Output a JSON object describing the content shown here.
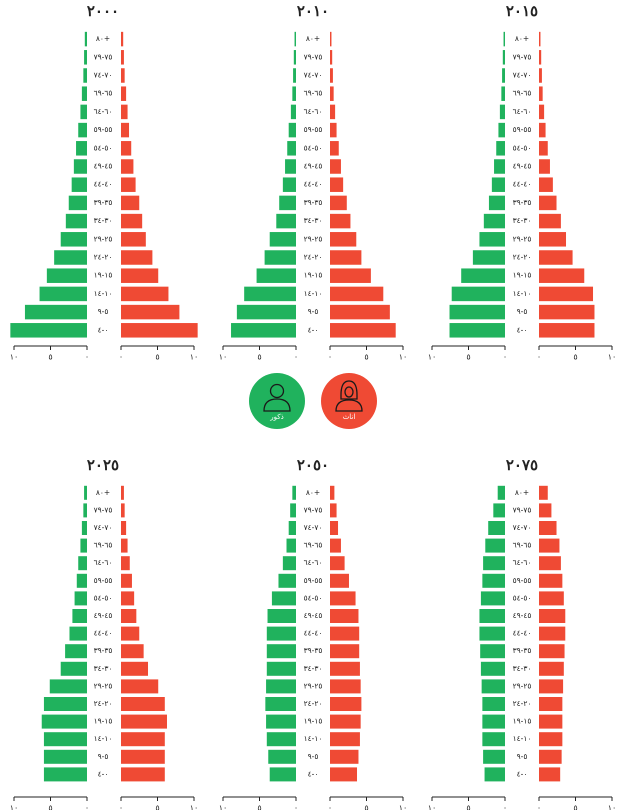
{
  "chart_data": [
    {
      "type": "bar",
      "title": "٢٠٠٠",
      "categories": [
        "٠-٤",
        "٥-٩",
        "١٠-١٤",
        "١٥-١٩",
        "٢٠-٢٤",
        "٢٥-٢٩",
        "٣٠-٣٤",
        "٣٥-٣٩",
        "٤٠-٤٤",
        "٤٥-٤٩",
        "٥٠-٥٤",
        "٥٥-٥٩",
        "٦٠-٦٤",
        "٦٥-٦٩",
        "٧٠-٧٤",
        "٧٥-٧٩",
        "٨٠+"
      ],
      "series": [
        {
          "name": "ذكور",
          "values": [
            10.5,
            8.5,
            6.5,
            5.5,
            4.5,
            3.6,
            2.9,
            2.5,
            2.1,
            1.8,
            1.5,
            1.2,
            0.9,
            0.7,
            0.5,
            0.4,
            0.3
          ]
        },
        {
          "name": "اناث",
          "values": [
            10.5,
            8.0,
            6.5,
            5.1,
            4.3,
            3.4,
            2.9,
            2.5,
            2.0,
            1.7,
            1.4,
            1.1,
            0.9,
            0.7,
            0.5,
            0.4,
            0.3
          ]
        }
      ],
      "tick_labels": [
        "١٠",
        "٥",
        "٠"
      ],
      "xlim": [
        0,
        10
      ]
    },
    {
      "type": "bar",
      "title": "٢٠١٠",
      "categories": [
        "٠-٤",
        "٥-٩",
        "١٠-١٤",
        "١٥-١٩",
        "٢٠-٢٤",
        "٢٥-٢٩",
        "٣٠-٣٤",
        "٣٥-٣٩",
        "٤٠-٤٤",
        "٤٥-٤٩",
        "٥٠-٥٤",
        "٥٥-٥٩",
        "٦٠-٦٤",
        "٦٥-٦٩",
        "٧٠-٧٤",
        "٧٥-٧٩",
        "٨٠+"
      ],
      "series": [
        {
          "name": "ذكور",
          "values": [
            8.9,
            8.1,
            7.1,
            5.4,
            4.3,
            3.6,
            2.7,
            2.3,
            1.8,
            1.5,
            1.2,
            1.0,
            0.7,
            0.5,
            0.4,
            0.3,
            0.2
          ]
        },
        {
          "name": "اناث",
          "values": [
            9.0,
            8.2,
            7.3,
            5.6,
            4.3,
            3.6,
            2.8,
            2.3,
            1.8,
            1.5,
            1.2,
            0.9,
            0.7,
            0.5,
            0.4,
            0.3,
            0.2
          ]
        }
      ],
      "tick_labels": [
        "١٠",
        "٥",
        "٠"
      ],
      "xlim": [
        0,
        10
      ]
    },
    {
      "type": "bar",
      "title": "٢٠١٥",
      "categories": [
        "٠-٤",
        "٥-٩",
        "١٠-١٤",
        "١٥-١٩",
        "٢٠-٢٤",
        "٢٥-٢٩",
        "٣٠-٣٤",
        "٣٥-٣٩",
        "٤٠-٤٤",
        "٤٥-٤٩",
        "٥٠-٥٤",
        "٥٥-٥٩",
        "٦٠-٦٤",
        "٦٥-٦٩",
        "٧٠-٧٤",
        "٧٥-٧٩",
        "٨٠+"
      ],
      "series": [
        {
          "name": "ذكور",
          "values": [
            7.6,
            7.6,
            7.3,
            6.0,
            4.4,
            3.5,
            2.9,
            2.2,
            1.8,
            1.5,
            1.2,
            0.9,
            0.7,
            0.5,
            0.4,
            0.3,
            0.2
          ]
        },
        {
          "name": "اناث",
          "values": [
            7.6,
            7.6,
            7.4,
            6.2,
            4.6,
            3.7,
            3.0,
            2.4,
            1.9,
            1.5,
            1.2,
            0.9,
            0.7,
            0.5,
            0.4,
            0.3,
            0.2
          ]
        }
      ],
      "tick_labels": [
        "١٠",
        "٥",
        "٠"
      ],
      "xlim": [
        0,
        10
      ]
    },
    {
      "type": "bar",
      "title": "٢٠٢٥",
      "categories": [
        "٠-٤",
        "٥-٩",
        "١٠-١٤",
        "١٥-١٩",
        "٢٠-٢٤",
        "٢٥-٢٩",
        "٣٠-٣٤",
        "٣٥-٣٩",
        "٤٠-٤٤",
        "٤٥-٤٩",
        "٥٠-٥٤",
        "٥٥-٥٩",
        "٦٠-٦٤",
        "٦٥-٦٩",
        "٧٠-٧٤",
        "٧٥-٧٩",
        "٨٠+"
      ],
      "series": [
        {
          "name": "ذكور",
          "values": [
            5.9,
            5.9,
            5.9,
            6.2,
            5.9,
            5.1,
            3.6,
            3.0,
            2.4,
            2.0,
            1.7,
            1.4,
            1.2,
            0.9,
            0.7,
            0.5,
            0.4
          ]
        },
        {
          "name": "اناث",
          "values": [
            6.0,
            6.0,
            6.0,
            6.3,
            6.0,
            5.1,
            3.7,
            3.1,
            2.5,
            2.1,
            1.8,
            1.5,
            1.2,
            0.9,
            0.7,
            0.5,
            0.4
          ]
        }
      ],
      "tick_labels": [
        "١٠",
        "٥",
        "٠"
      ],
      "xlim": [
        0,
        10
      ]
    },
    {
      "type": "bar",
      "title": "٢٠٥٠",
      "categories": [
        "٠-٤",
        "٥-٩",
        "١٠-١٤",
        "١٥-١٩",
        "٢٠-٢٤",
        "٢٥-٢٩",
        "٣٠-٣٤",
        "٣٥-٣٩",
        "٤٠-٤٤",
        "٤٥-٤٩",
        "٥٠-٥٤",
        "٥٥-٥٩",
        "٦٠-٦٤",
        "٦٥-٦٩",
        "٧٠-٧٤",
        "٧٥-٧٩",
        "٨٠+"
      ],
      "series": [
        {
          "name": "ذكور",
          "values": [
            3.6,
            3.8,
            4.0,
            4.1,
            4.2,
            4.1,
            4.0,
            4.0,
            4.0,
            3.9,
            3.3,
            2.4,
            1.8,
            1.3,
            1.0,
            0.8,
            0.5
          ]
        },
        {
          "name": "اناث",
          "values": [
            3.7,
            3.9,
            4.1,
            4.2,
            4.3,
            4.2,
            4.1,
            4.0,
            4.0,
            3.9,
            3.5,
            2.6,
            2.0,
            1.5,
            1.1,
            0.9,
            0.6
          ]
        }
      ],
      "tick_labels": [
        "١٠",
        "٥",
        "٠"
      ],
      "xlim": [
        0,
        10
      ]
    },
    {
      "type": "bar",
      "title": "٢٠٧٥",
      "categories": [
        "٠-٤",
        "٥-٩",
        "١٠-١٤",
        "١٥-١٩",
        "٢٠-٢٤",
        "٢٥-٢٩",
        "٣٠-٣٤",
        "٣٥-٣٩",
        "٤٠-٤٤",
        "٤٥-٤٩",
        "٥٠-٥٤",
        "٥٥-٥٩",
        "٦٠-٦٤",
        "٦٥-٦٩",
        "٧٠-٧٤",
        "٧٥-٧٩",
        "٨٠+"
      ],
      "series": [
        {
          "name": "ذكور",
          "values": [
            2.8,
            3.0,
            3.1,
            3.1,
            3.1,
            3.2,
            3.3,
            3.4,
            3.5,
            3.5,
            3.3,
            3.1,
            3.0,
            2.7,
            2.3,
            1.6,
            1.0
          ]
        },
        {
          "name": "اناث",
          "values": [
            2.9,
            3.1,
            3.2,
            3.2,
            3.2,
            3.3,
            3.4,
            3.5,
            3.6,
            3.6,
            3.4,
            3.2,
            3.0,
            2.8,
            2.4,
            1.7,
            1.2
          ]
        }
      ],
      "tick_labels": [
        "١٠",
        "٥",
        "٠"
      ],
      "xlim": [
        0,
        10
      ]
    }
  ],
  "colors": {
    "male": "#20b25d",
    "female": "#ef4a34",
    "axis": "#222222",
    "text": "#222222"
  },
  "legend": {
    "male": {
      "label": "ذكور",
      "icon": "man-icon"
    },
    "female": {
      "label": "اناث",
      "icon": "woman-hijab-icon"
    }
  }
}
